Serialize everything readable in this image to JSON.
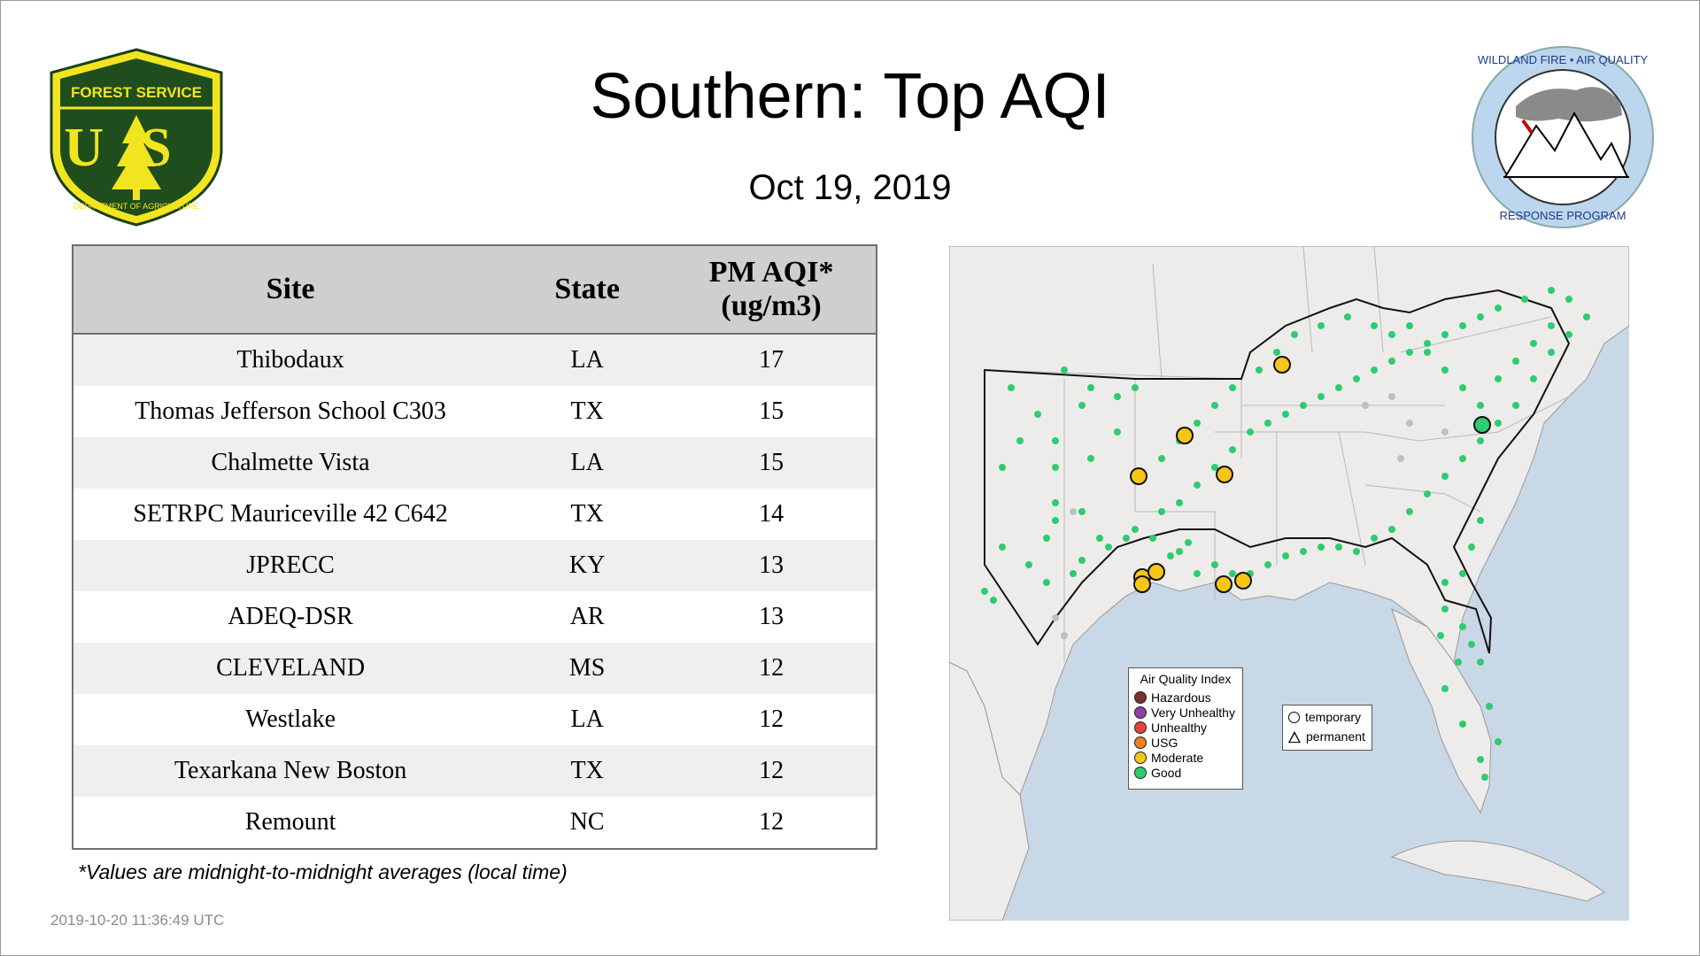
{
  "title": "Southern: Top AQI",
  "date": "Oct 19, 2019",
  "logos": {
    "forest_service": {
      "top_text": "FOREST SERVICE",
      "shield_letters": "US",
      "bottom_text": "DEPARTMENT OF AGRICULTURE"
    },
    "wildland": {
      "top_text": "WILDLAND FIRE • AIR QUALITY",
      "bottom_text": "RESPONSE PROGRAM"
    }
  },
  "table": {
    "headers": {
      "site": "Site",
      "state": "State",
      "aqi_line1": "PM AQI*",
      "aqi_line2": "(ug/m3)"
    },
    "rows": [
      {
        "site": "Thibodaux",
        "state": "LA",
        "aqi": "17"
      },
      {
        "site": "Thomas Jefferson School C303",
        "state": "TX",
        "aqi": "15"
      },
      {
        "site": "Chalmette Vista",
        "state": "LA",
        "aqi": "15"
      },
      {
        "site": "SETRPC Mauriceville 42 C642",
        "state": "TX",
        "aqi": "14"
      },
      {
        "site": "JPRECC",
        "state": "KY",
        "aqi": "13"
      },
      {
        "site": "ADEQ-DSR",
        "state": "AR",
        "aqi": "13"
      },
      {
        "site": "CLEVELAND",
        "state": "MS",
        "aqi": "12"
      },
      {
        "site": "Westlake",
        "state": "LA",
        "aqi": "12"
      },
      {
        "site": "Texarkana New Boston",
        "state": "TX",
        "aqi": "12"
      },
      {
        "site": "Remount",
        "state": "NC",
        "aqi": "12"
      }
    ]
  },
  "footnote": "*Values are midnight-to-midnight averages (local time)",
  "timestamp": "2019-10-20 11:36:49 UTC",
  "map": {
    "legend_aqi": {
      "title": "Air Quality Index",
      "items": [
        {
          "label": "Hazardous",
          "color": "#7e2f2f"
        },
        {
          "label": "Very Unhealthy",
          "color": "#8f3fa8"
        },
        {
          "label": "Unhealthy",
          "color": "#e8423a"
        },
        {
          "label": "USG",
          "color": "#f07e22"
        },
        {
          "label": "Moderate",
          "color": "#f5c518"
        },
        {
          "label": "Good",
          "color": "#2ecc71"
        }
      ]
    },
    "legend_type": {
      "temporary": "temporary",
      "permanent": "permanent"
    },
    "colors": {
      "good": "#2ecc71",
      "moderate": "#f5c518",
      "inactive": "#b9c0c8"
    }
  }
}
